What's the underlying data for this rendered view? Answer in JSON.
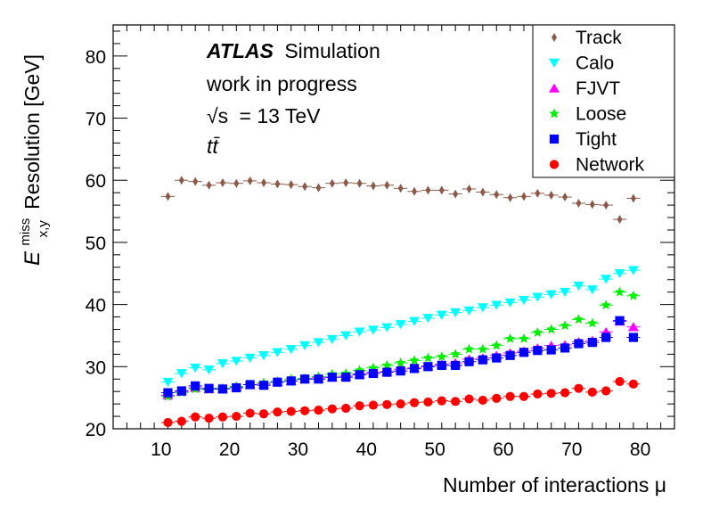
{
  "chart_data": {
    "type": "scatter",
    "title": "",
    "xlabel": "Number of interactions μ",
    "ylabel": {
      "symbol": "E",
      "superscript": "miss",
      "subscript": "x,y",
      "text": "Resolution [GeV]"
    },
    "xlim": [
      3,
      85
    ],
    "ylim": [
      20,
      85
    ],
    "xticks": [
      10,
      20,
      30,
      40,
      50,
      60,
      70,
      80
    ],
    "yticks": [
      20,
      30,
      40,
      50,
      60,
      70,
      80
    ],
    "grid": false,
    "legend_position": "top-right",
    "annotations": {
      "atlas": "ATLAS",
      "simulation": "Simulation",
      "progress": "work in progress",
      "energy_sqrt": "√s",
      "energy_value": "= 13 TeV",
      "process": "tt̄"
    },
    "x": [
      11,
      13,
      15,
      17,
      19,
      21,
      23,
      25,
      27,
      29,
      31,
      33,
      35,
      37,
      39,
      41,
      43,
      45,
      47,
      49,
      51,
      53,
      55,
      57,
      59,
      61,
      63,
      65,
      67,
      69,
      71,
      73,
      75,
      77,
      79
    ],
    "series": [
      {
        "name": "Track",
        "color": "#8b5a4a",
        "marker": "diamond",
        "values": [
          57.4,
          60.0,
          59.8,
          59.2,
          59.6,
          59.5,
          59.9,
          59.6,
          59.4,
          59.3,
          59.0,
          58.8,
          59.5,
          59.6,
          59.5,
          59.1,
          59.2,
          58.7,
          58.2,
          58.4,
          58.4,
          57.8,
          58.6,
          58.1,
          57.7,
          57.2,
          57.4,
          57.9,
          57.6,
          57.3,
          56.3,
          56.1,
          56.0,
          53.7,
          57.1
        ]
      },
      {
        "name": "Calo",
        "color": "#00ffff",
        "marker": "triangle-down",
        "values": [
          27.5,
          28.9,
          29.8,
          29.5,
          30.5,
          30.9,
          31.4,
          31.8,
          32.3,
          32.8,
          33.4,
          33.9,
          34.4,
          35.0,
          35.6,
          35.9,
          36.3,
          36.8,
          37.3,
          37.8,
          38.3,
          38.7,
          39.0,
          39.5,
          39.9,
          40.3,
          40.7,
          41.2,
          41.6,
          42.0,
          43.0,
          42.4,
          44.1,
          45.0,
          45.5
        ]
      },
      {
        "name": "FJVT",
        "color": "#ff00ff",
        "marker": "triangle-up",
        "values": [
          25.4,
          26.0,
          26.6,
          26.4,
          26.5,
          26.8,
          27.1,
          27.2,
          27.6,
          27.7,
          28.0,
          28.2,
          28.3,
          28.5,
          28.8,
          29.1,
          29.2,
          29.6,
          29.8,
          30.1,
          30.4,
          30.6,
          31.2,
          31.4,
          31.8,
          32.2,
          32.5,
          33.0,
          33.4,
          33.5,
          34.0,
          34.2,
          35.6,
          37.3,
          36.4
        ]
      },
      {
        "name": "Loose",
        "color": "#00ee00",
        "marker": "star",
        "values": [
          25.2,
          25.8,
          26.4,
          26.3,
          26.5,
          26.8,
          27.1,
          27.4,
          27.6,
          28.0,
          28.1,
          28.4,
          28.8,
          28.9,
          29.4,
          29.8,
          30.2,
          30.6,
          31.0,
          31.4,
          31.6,
          32.0,
          32.8,
          32.8,
          33.4,
          34.5,
          34.5,
          35.5,
          36.0,
          36.6,
          37.6,
          37.0,
          39.9,
          42.0,
          41.4
        ]
      },
      {
        "name": "Tight",
        "color": "#0000ff",
        "marker": "square",
        "values": [
          25.8,
          26.1,
          26.9,
          26.5,
          26.4,
          26.6,
          27.1,
          27.0,
          27.5,
          27.7,
          28.0,
          28.0,
          28.3,
          28.3,
          28.7,
          28.9,
          29.1,
          29.3,
          29.7,
          30.0,
          30.2,
          30.2,
          30.8,
          31.1,
          31.4,
          31.8,
          32.3,
          32.6,
          32.7,
          33.0,
          33.7,
          33.9,
          34.7,
          37.4,
          34.7
        ]
      },
      {
        "name": "Network",
        "color": "#ff0000",
        "marker": "circle",
        "values": [
          21.0,
          21.2,
          21.9,
          21.7,
          21.9,
          22.0,
          22.5,
          22.4,
          22.7,
          22.8,
          22.9,
          23.0,
          23.2,
          23.3,
          23.7,
          23.8,
          23.9,
          24.0,
          24.2,
          24.3,
          24.5,
          24.4,
          24.8,
          24.6,
          24.9,
          25.2,
          25.2,
          25.6,
          25.7,
          25.8,
          26.5,
          25.9,
          26.1,
          27.6,
          27.2
        ]
      }
    ]
  }
}
